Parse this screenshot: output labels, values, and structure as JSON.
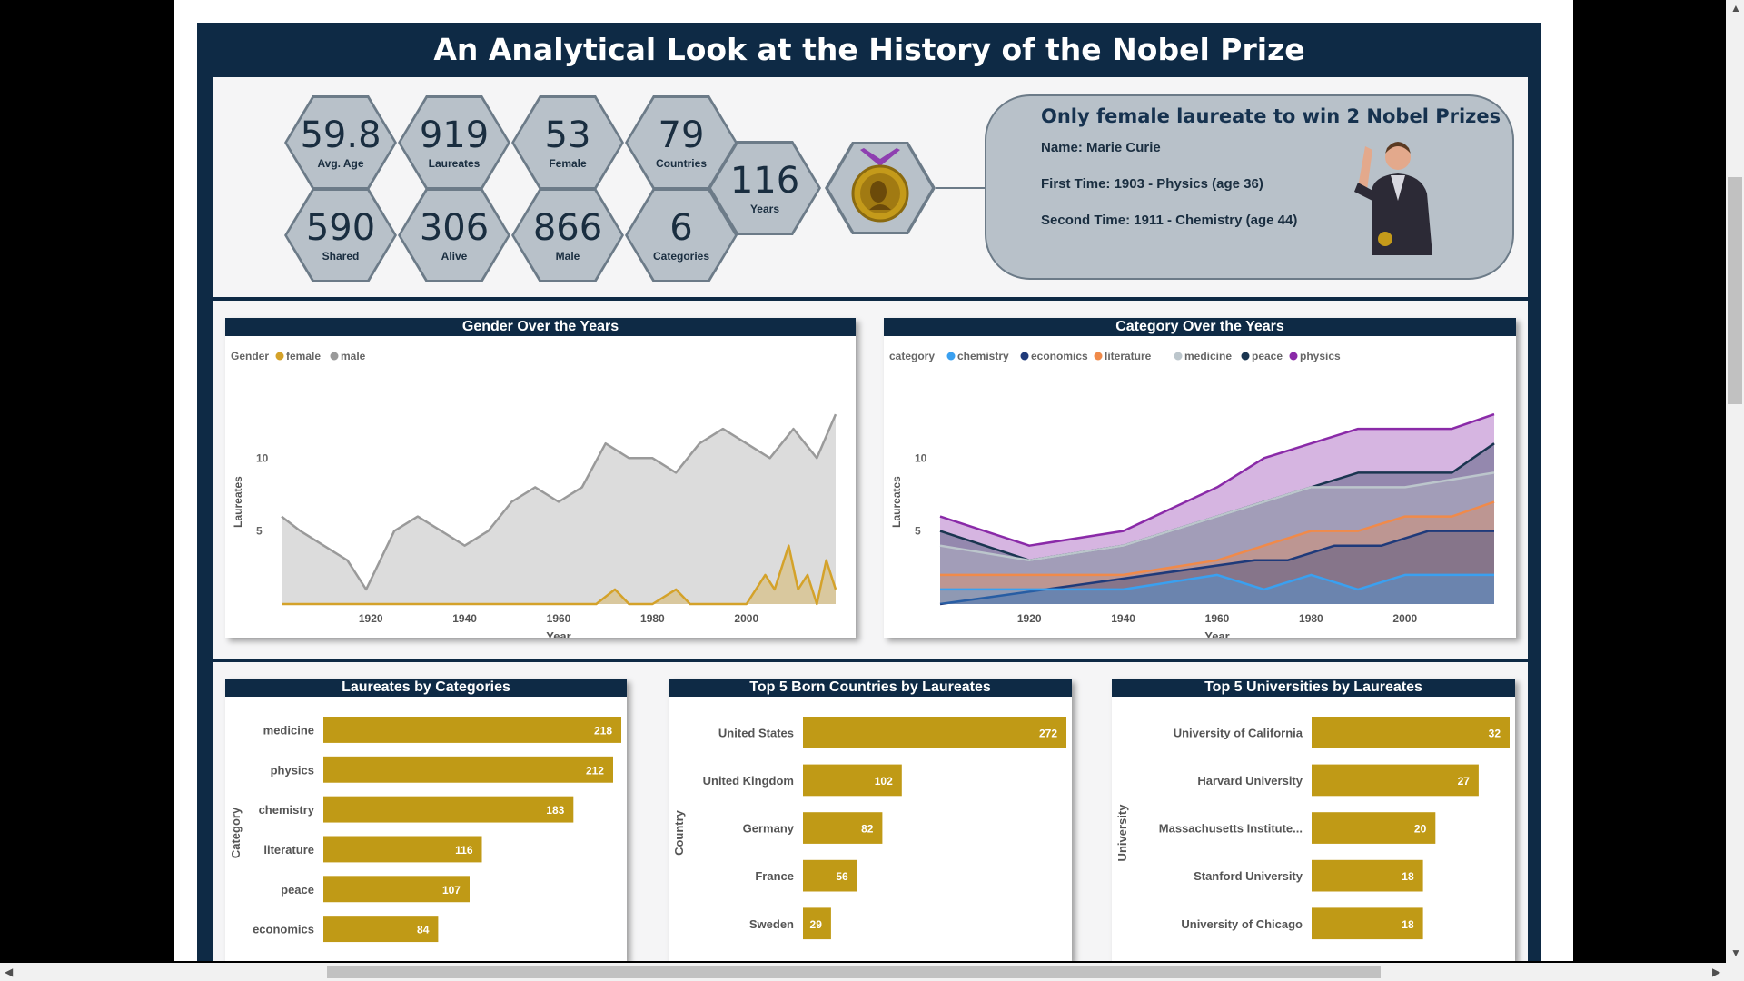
{
  "dashboard_title": "An Analytical Look at the History of the Nobel Prize",
  "kpis": [
    {
      "value": "59.8",
      "label": "Avg. Age"
    },
    {
      "value": "919",
      "label": "Laureates"
    },
    {
      "value": "53",
      "label": "Female"
    },
    {
      "value": "79",
      "label": "Countries"
    },
    {
      "value": "590",
      "label": "Shared"
    },
    {
      "value": "306",
      "label": "Alive"
    },
    {
      "value": "866",
      "label": "Male"
    },
    {
      "value": "6",
      "label": "Categories"
    },
    {
      "value": "116",
      "label": "Years"
    }
  ],
  "info_card": {
    "heading": "Only female laureate to win 2 Nobel Prizes",
    "name_line": "Name: Marie Curie",
    "first_line": "First Time: 1903 - Physics (age 36)",
    "second_line": "Second Time: 1911 - Chemistry (age 44)"
  },
  "colors": {
    "navy": "#0e2a45",
    "bar": "#c09a16",
    "female": "#d4a22a",
    "male": "#9a9a9a",
    "chemistry": "#3aa0f0",
    "economics": "#1f3a7a",
    "literature": "#f08a4a",
    "medicine": "#bcc6cc",
    "peace": "#1a3550",
    "physics": "#8a2aa8"
  },
  "chart_data": [
    {
      "type": "area",
      "title": "Gender Over the Years",
      "legend_title": "Gender",
      "legend_position": "top-left",
      "xlabel": "Year",
      "ylabel": "Laureates",
      "x_ticks": [
        "1920",
        "1940",
        "1960",
        "1980",
        "2000"
      ],
      "y_ticks": [
        "5",
        "10"
      ],
      "xlim": [
        1901,
        2019
      ],
      "ylim": [
        0,
        14
      ],
      "series": [
        {
          "name": "female",
          "x": [
            1901,
            1968,
            1972,
            1975,
            1980,
            1985,
            1988,
            1992,
            1995,
            2000,
            2004,
            2006,
            2009,
            2011,
            2013,
            2015,
            2017,
            2019
          ],
          "values": [
            0,
            0,
            1,
            0,
            0,
            1,
            0,
            0,
            0,
            0,
            2,
            1,
            4,
            1,
            2,
            0,
            3,
            1
          ]
        },
        {
          "name": "male",
          "x": [
            1901,
            1905,
            1910,
            1915,
            1919,
            1925,
            1930,
            1935,
            1940,
            1945,
            1950,
            1955,
            1960,
            1965,
            1970,
            1975,
            1980,
            1985,
            1990,
            1995,
            2000,
            2005,
            2010,
            2015,
            2019
          ],
          "values": [
            6,
            5,
            4,
            3,
            1,
            5,
            6,
            5,
            4,
            5,
            7,
            8,
            7,
            8,
            11,
            10,
            10,
            9,
            11,
            12,
            11,
            10,
            12,
            10,
            13
          ]
        }
      ]
    },
    {
      "type": "area",
      "title": "Category Over the Years",
      "legend_title": "category",
      "legend_position": "top-left",
      "xlabel": "Year",
      "ylabel": "Laureates",
      "x_ticks": [
        "1920",
        "1940",
        "1960",
        "1980",
        "2000"
      ],
      "y_ticks": [
        "5",
        "10"
      ],
      "xlim": [
        1901,
        2019
      ],
      "ylim": [
        0,
        14
      ],
      "series": [
        {
          "name": "chemistry",
          "x": [
            1901,
            1920,
            1940,
            1960,
            1970,
            1980,
            1990,
            2000,
            2010,
            2019
          ],
          "values": [
            1,
            1,
            1,
            2,
            1,
            2,
            1,
            2,
            2,
            2
          ]
        },
        {
          "name": "economics",
          "x": [
            1901,
            1968,
            1975,
            1985,
            1995,
            2005,
            2019
          ],
          "values": [
            0,
            3,
            3,
            4,
            4,
            5,
            5
          ]
        },
        {
          "name": "literature",
          "x": [
            1901,
            1920,
            1940,
            1960,
            1970,
            1980,
            1990,
            2000,
            2010,
            2019
          ],
          "values": [
            2,
            2,
            2,
            3,
            4,
            5,
            5,
            6,
            6,
            7
          ]
        },
        {
          "name": "medicine",
          "x": [
            1901,
            1920,
            1940,
            1960,
            1980,
            2000,
            2019
          ],
          "values": [
            4,
            3,
            4,
            6,
            8,
            8,
            9
          ]
        },
        {
          "name": "peace",
          "x": [
            1901,
            1920,
            1940,
            1960,
            1970,
            1980,
            1990,
            2000,
            2010,
            2019
          ],
          "values": [
            5,
            3,
            4,
            6,
            7,
            8,
            9,
            9,
            9,
            11
          ]
        },
        {
          "name": "physics",
          "x": [
            1901,
            1920,
            1940,
            1960,
            1970,
            1980,
            1990,
            2000,
            2010,
            2019
          ],
          "values": [
            6,
            4,
            5,
            8,
            10,
            11,
            12,
            12,
            12,
            13
          ]
        }
      ]
    },
    {
      "type": "bar",
      "title": "Laureates by Categories",
      "ylabel": "Category",
      "categories": [
        "medicine",
        "physics",
        "chemistry",
        "literature",
        "peace",
        "economics"
      ],
      "values": [
        218,
        212,
        183,
        116,
        107,
        84
      ]
    },
    {
      "type": "bar",
      "title": "Top 5 Born Countries by Laureates",
      "ylabel": "Country",
      "categories": [
        "United States",
        "United Kingdom",
        "Germany",
        "France",
        "Sweden"
      ],
      "values": [
        272,
        102,
        82,
        56,
        29
      ]
    },
    {
      "type": "bar",
      "title": "Top 5 Universities by Laureates",
      "ylabel": "University",
      "categories": [
        "University of California",
        "Harvard University",
        "Massachusetts Institute...",
        "Stanford University",
        "University of Chicago"
      ],
      "values": [
        32,
        27,
        20,
        18,
        18
      ]
    }
  ]
}
